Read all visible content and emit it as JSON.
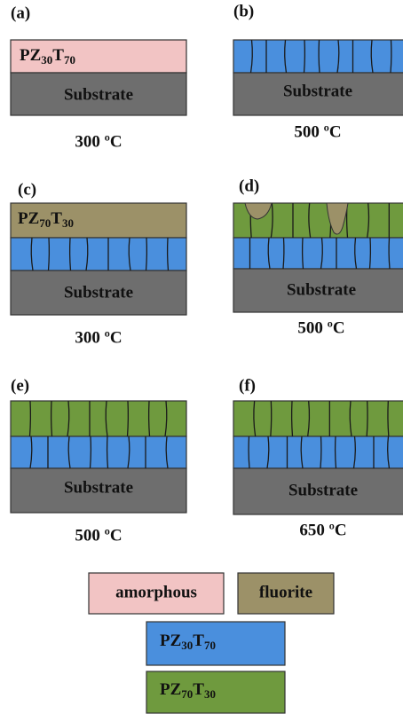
{
  "panels": [
    {
      "label": "(a)",
      "film": [
        "PZ",
        "30",
        "T",
        "70"
      ],
      "substrate": "Substrate",
      "temperature": "300 ºC"
    },
    {
      "label": "(b)",
      "substrate": "Substrate",
      "temperature": "500 ºC"
    },
    {
      "label": "(c)",
      "film": [
        "PZ",
        "70",
        "T",
        "30"
      ],
      "substrate": "Substrate",
      "temperature": "300 ºC"
    },
    {
      "label": "(d)",
      "substrate": "Substrate",
      "temperature": "500 ºC"
    },
    {
      "label": "(e)",
      "substrate": "Substrate",
      "temperature": "500 ºC"
    },
    {
      "label": "(f)",
      "substrate": "Substrate",
      "temperature": "650 ºC"
    }
  ],
  "legend": [
    {
      "text": "amorphous"
    },
    {
      "text": "fluorite"
    },
    {
      "text": [
        "PZ",
        "30",
        "T",
        "70"
      ]
    },
    {
      "text": [
        "PZ",
        "70",
        "T",
        "30"
      ]
    }
  ]
}
